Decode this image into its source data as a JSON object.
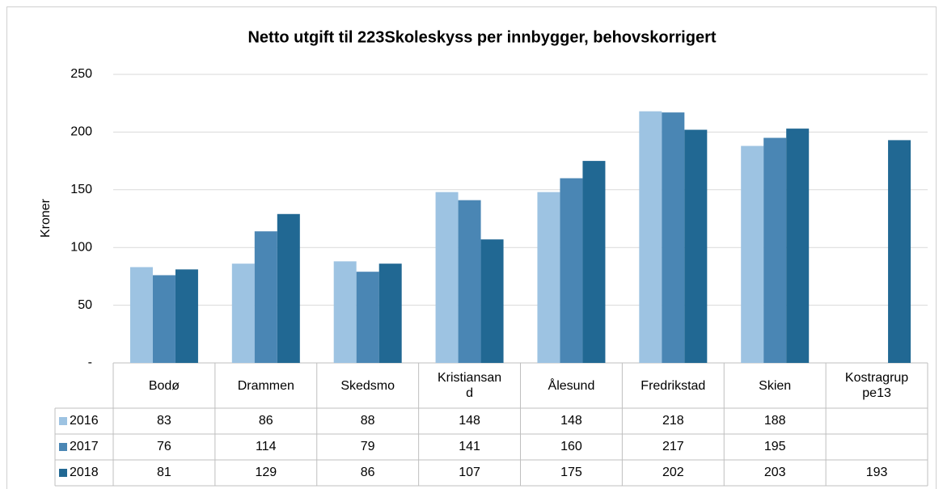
{
  "chart_data": {
    "type": "bar",
    "title": "Netto utgift til 223Skoleskyss per innbygger, behovskorrigert",
    "y_label": "Kroner",
    "categories": [
      "Bodø",
      "Drammen",
      "Skedsmo",
      "Kristiansand",
      "Ålesund",
      "Fredrikstad",
      "Skien",
      "Kostragruppe13"
    ],
    "series": [
      {
        "name": "2016",
        "color": "#9dc3e2",
        "values": [
          83,
          86,
          88,
          148,
          148,
          218,
          188,
          null
        ]
      },
      {
        "name": "2017",
        "color": "#4a86b4",
        "values": [
          76,
          114,
          79,
          141,
          160,
          217,
          195,
          null
        ]
      },
      {
        "name": "2018",
        "color": "#216893",
        "values": [
          81,
          129,
          86,
          107,
          175,
          202,
          203,
          193
        ]
      }
    ],
    "ylim": [
      0,
      250
    ],
    "yticks": [
      {
        "value": 0,
        "label": "-"
      },
      50,
      100,
      150,
      200,
      250
    ],
    "grid": true
  }
}
